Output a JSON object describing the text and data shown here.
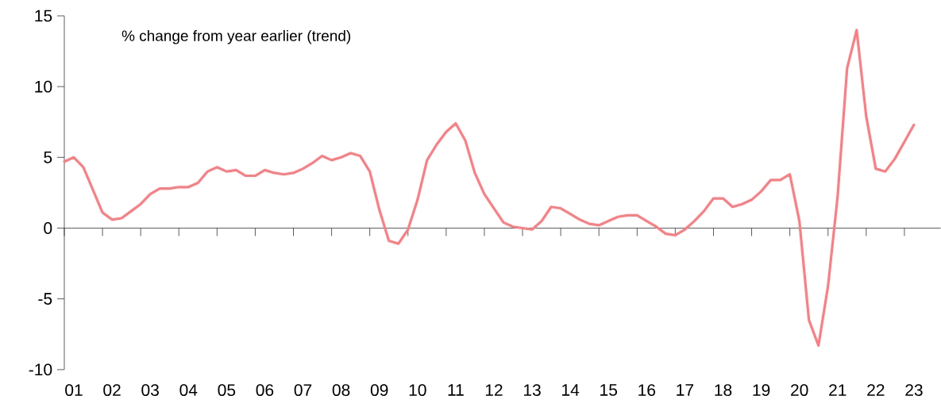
{
  "chart_data": {
    "type": "line",
    "annotations": [
      "% change from year earlier (trend)"
    ],
    "categories": [
      null,
      "01",
      null,
      null,
      null,
      "02",
      null,
      null,
      null,
      "03",
      null,
      null,
      null,
      "04",
      null,
      null,
      null,
      "05",
      null,
      null,
      null,
      "06",
      null,
      null,
      null,
      "07",
      null,
      null,
      null,
      "08",
      null,
      null,
      null,
      "09",
      null,
      null,
      null,
      "10",
      null,
      null,
      null,
      "11",
      null,
      null,
      null,
      "12",
      null,
      null,
      null,
      "13",
      null,
      null,
      null,
      "14",
      null,
      null,
      null,
      "15",
      null,
      null,
      null,
      "16",
      null,
      null,
      null,
      "17",
      null,
      null,
      null,
      "18",
      null,
      null,
      null,
      "19",
      null,
      null,
      null,
      "20",
      null,
      null,
      null,
      "21",
      null,
      null,
      null,
      "22",
      null,
      null,
      null,
      "23"
    ],
    "values": [
      4.7,
      5.0,
      4.3,
      2.7,
      1.1,
      0.6,
      0.7,
      1.2,
      1.7,
      2.4,
      2.8,
      2.8,
      2.9,
      2.9,
      3.2,
      4.0,
      4.3,
      4.0,
      4.1,
      3.7,
      3.7,
      4.1,
      3.9,
      3.8,
      3.9,
      4.2,
      4.6,
      5.1,
      4.8,
      5.0,
      5.3,
      5.1,
      4.0,
      1.3,
      -0.9,
      -1.1,
      -0.1,
      2.0,
      4.8,
      5.9,
      6.8,
      7.4,
      6.2,
      3.9,
      2.4,
      1.4,
      0.4,
      0.1,
      0.0,
      -0.1,
      0.5,
      1.5,
      1.4,
      1.0,
      0.6,
      0.3,
      0.2,
      0.5,
      0.8,
      0.9,
      0.9,
      0.5,
      0.1,
      -0.4,
      -0.5,
      -0.1,
      0.5,
      1.2,
      2.1,
      2.1,
      1.5,
      1.7,
      2.0,
      2.6,
      3.4,
      3.4,
      3.8,
      0.5,
      -6.5,
      -8.3,
      -4.1,
      2.2,
      11.3,
      14.0,
      7.9,
      4.2,
      4.0,
      4.9,
      6.1,
      7.3
    ],
    "color": "#ff7c80",
    "ylim": [
      -10,
      15
    ],
    "yticks": [
      -10,
      -5,
      0,
      5,
      10,
      15
    ]
  }
}
